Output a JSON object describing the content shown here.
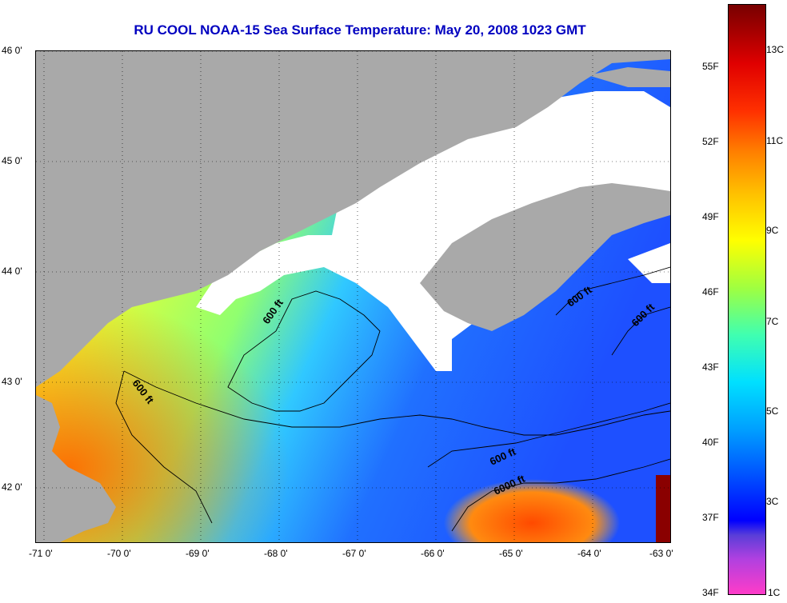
{
  "title": "RU COOL  NOAA-15  Sea Surface Temperature:  May 20, 2008 1023 GMT",
  "map": {
    "lon_labels": [
      "-71 0'",
      "-70 0'",
      "-69 0'",
      "-68 0'",
      "-67 0'",
      "-66 0'",
      "-65 0'",
      "-64 0'",
      "-63 0'"
    ],
    "lat_labels": [
      "46 0'",
      "45 0'",
      "44 0'",
      "43 0'",
      "42 0'"
    ],
    "contour_labels": [
      "600 ft",
      "600 ft",
      "600 ft",
      "600 ft",
      "600 ft",
      "6000 ft"
    ],
    "colors": {
      "land": "#a9a9a9",
      "cloud": "#ffffff",
      "warm": "#ff8c00",
      "mid": "#c8ff3c",
      "cool": "#28b4ff",
      "cold": "#1e46ff"
    }
  },
  "colorbar": {
    "fahrenheit": [
      "55F",
      "52F",
      "49F",
      "46F",
      "43F",
      "40F",
      "37F",
      "34F"
    ],
    "celsius": [
      "13C",
      "11C",
      "9C",
      "7C",
      "5C",
      "3C",
      "1C"
    ]
  }
}
